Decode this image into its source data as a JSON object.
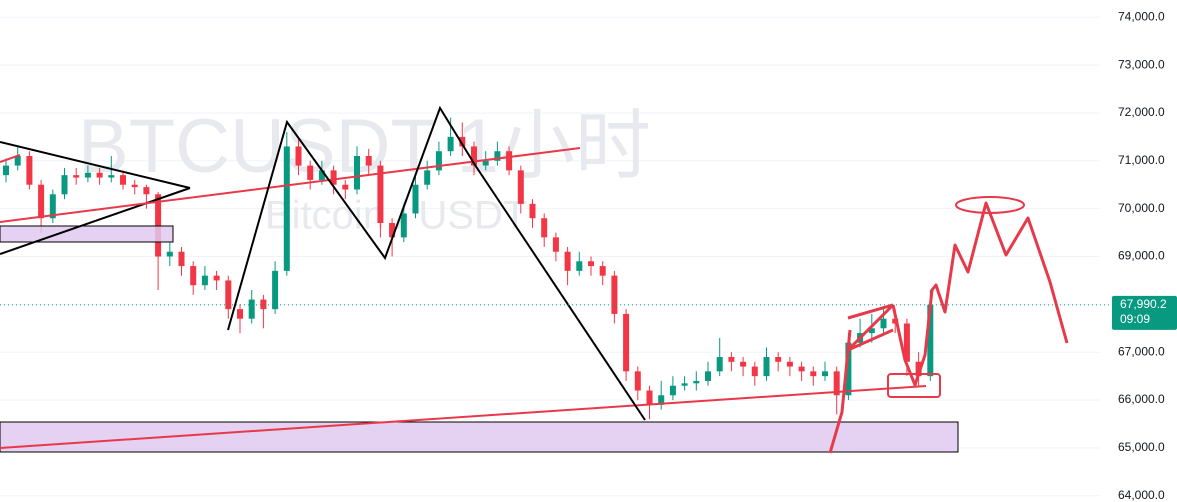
{
  "chart_data": {
    "type": "candlestick",
    "title": "BTCUSDT 1小时",
    "subtitle": "Bitcoin / USDT",
    "open": [
      70700,
      70900,
      71100,
      70500,
      69800,
      70300,
      70700,
      70650,
      70750,
      70650,
      70700,
      70500,
      70450,
      70300,
      69000,
      69100,
      68800,
      68400,
      68600,
      68500,
      67900,
      67700,
      68100,
      67900,
      68700,
      71300,
      70900,
      70600,
      70800,
      70500,
      70400,
      71100,
      70900,
      69700,
      69400,
      69900,
      70500,
      70800,
      71200,
      71500,
      71300,
      70900,
      71000,
      71200,
      70800,
      70100,
      69800,
      69400,
      69100,
      68700,
      68900,
      68800,
      68600,
      67800,
      66600,
      66200,
      65900,
      66100,
      66300,
      66350,
      66400,
      66600,
      66900,
      66800,
      66700,
      66500,
      66900,
      66800,
      66700,
      66600,
      66500,
      66600,
      66100,
      67200,
      67400,
      67500,
      67700,
      67600,
      66800,
      66500
    ],
    "high": [
      71050,
      71300,
      71200,
      70600,
      70400,
      70850,
      70850,
      70900,
      70850,
      71100,
      70800,
      70600,
      70500,
      70350,
      69300,
      69200,
      68900,
      68800,
      68700,
      68600,
      68000,
      68300,
      68200,
      68900,
      71600,
      71500,
      71000,
      71000,
      70900,
      70600,
      71300,
      71250,
      71000,
      69800,
      70100,
      70700,
      71000,
      71400,
      71900,
      71800,
      71400,
      71200,
      71400,
      71300,
      70900,
      70200,
      69900,
      69500,
      69200,
      69100,
      69000,
      68900,
      68700,
      67900,
      66700,
      66300,
      66400,
      66500,
      66500,
      66600,
      66800,
      67300,
      67000,
      66900,
      66800,
      67100,
      67000,
      66900,
      66800,
      66700,
      66800,
      66700,
      67400,
      67700,
      67800,
      67900,
      67900,
      67700,
      67000,
      68300
    ],
    "low": [
      70550,
      70800,
      70400,
      69500,
      69700,
      70200,
      70500,
      70550,
      70500,
      70550,
      70400,
      70300,
      70000,
      68300,
      68800,
      68600,
      68200,
      68300,
      68300,
      67700,
      67400,
      67600,
      67500,
      67800,
      68600,
      70700,
      70400,
      70500,
      70300,
      70200,
      70300,
      70700,
      69400,
      69000,
      69300,
      69800,
      70400,
      70700,
      71100,
      71100,
      70700,
      70800,
      70900,
      70700,
      69900,
      69600,
      69200,
      68900,
      68400,
      68600,
      68600,
      68400,
      67600,
      66400,
      66000,
      65600,
      65800,
      66000,
      66200,
      66200,
      66300,
      66500,
      66600,
      66500,
      66300,
      66400,
      66600,
      66500,
      66400,
      66300,
      66400,
      65700,
      66000,
      67100,
      67200,
      67400,
      67400,
      66500,
      66300,
      66400
    ],
    "close": [
      70900,
      71100,
      70500,
      69800,
      70300,
      70700,
      70650,
      70750,
      70650,
      70700,
      70500,
      70450,
      70300,
      69000,
      69100,
      68800,
      68400,
      68600,
      68500,
      67900,
      67700,
      68100,
      67900,
      68700,
      71300,
      70900,
      70600,
      70800,
      70500,
      70400,
      71100,
      70900,
      69700,
      69400,
      69900,
      70500,
      70800,
      71200,
      71500,
      71300,
      70900,
      71000,
      71200,
      70800,
      70100,
      69800,
      69400,
      69100,
      68700,
      68900,
      68800,
      68600,
      67800,
      66600,
      66200,
      65900,
      66100,
      66300,
      66350,
      66400,
      66600,
      66900,
      66800,
      66700,
      66500,
      66900,
      66800,
      66700,
      66600,
      66500,
      66600,
      66100,
      67200,
      67400,
      67500,
      67700,
      67600,
      66800,
      66500,
      67990.2
    ],
    "up_color": "#089981",
    "down_color": "#f23645",
    "ylim": [
      63870,
      74360
    ],
    "yticks": [
      {
        "value": 64000,
        "label": "64,000.0"
      },
      {
        "value": 65000,
        "label": "65,000.0"
      },
      {
        "value": 66000,
        "label": "66,000.0"
      },
      {
        "value": 67000,
        "label": "67,000.0"
      },
      {
        "value": 68000,
        "label": "68,000.0"
      },
      {
        "value": 69000,
        "label": "69,000.0"
      },
      {
        "value": 70000,
        "label": "70,000.0"
      },
      {
        "value": 71000,
        "label": "71,000.0"
      },
      {
        "value": 72000,
        "label": "72,000.0"
      },
      {
        "value": 73000,
        "label": "73,000.0"
      },
      {
        "value": 74000,
        "label": "74,000.0"
      }
    ],
    "grid": true,
    "last_price": {
      "value": 67990.2,
      "label": "67,990.2"
    },
    "countdown": "09:09"
  }
}
